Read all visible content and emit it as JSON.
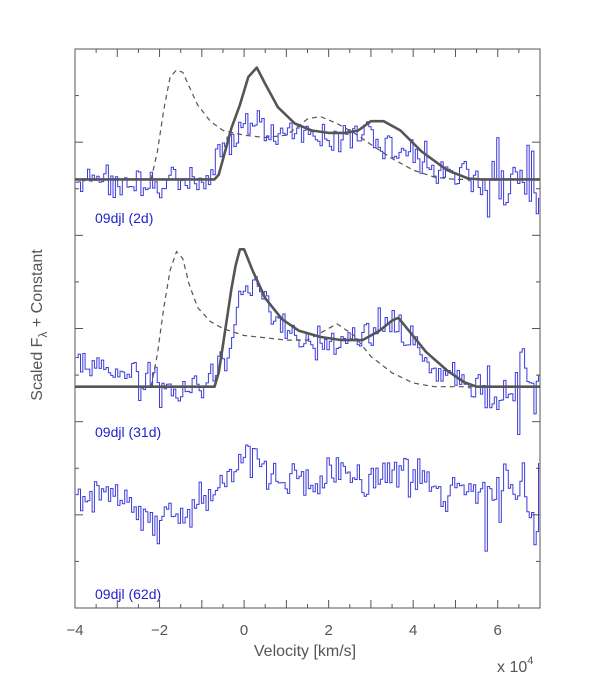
{
  "chart_data": {
    "type": "line",
    "xlabel": "Velocity [km/s]",
    "ylabel": "Scaled F",
    "ylabel_sub": "λ",
    "ylabel_suffix": " + Constant",
    "x_multiplier": "x 10",
    "x_multiplier_exp": "4",
    "xlim": [
      -4,
      7
    ],
    "ylim": [
      0,
      12
    ],
    "xticks": [
      "−4",
      "−2",
      "0",
      "2",
      "4",
      "6"
    ],
    "xtick_values": [
      -4,
      -2,
      0,
      2,
      4,
      6
    ],
    "colors": {
      "observed": "#3b3bdc",
      "model": "#555555",
      "label": "#2222cc",
      "axis": "#555555"
    },
    "panels": [
      {
        "label": "09djl (2d)",
        "offset": 9.2,
        "observed_noise": 0.75,
        "observed_shape": [
          [
            -4.0,
            0.0
          ],
          [
            -2.2,
            -0.1
          ],
          [
            -1.0,
            0.0
          ],
          [
            -0.5,
            0.5
          ],
          [
            -0.2,
            0.9
          ],
          [
            0.0,
            1.3
          ],
          [
            0.5,
            1.0
          ],
          [
            1.0,
            1.1
          ],
          [
            1.5,
            1.0
          ],
          [
            2.0,
            0.9
          ],
          [
            2.5,
            0.9
          ],
          [
            3.0,
            0.9
          ],
          [
            3.5,
            0.8
          ],
          [
            4.0,
            0.5
          ],
          [
            4.5,
            0.2
          ],
          [
            5.0,
            0.1
          ],
          [
            5.5,
            0.0
          ],
          [
            6.0,
            0.0
          ],
          [
            7.0,
            0.0
          ]
        ],
        "model_solid": [
          [
            -4.0,
            0.0
          ],
          [
            -0.7,
            0.0
          ],
          [
            -0.6,
            0.1
          ],
          [
            -0.45,
            0.6
          ],
          [
            -0.3,
            1.1
          ],
          [
            -0.1,
            1.6
          ],
          [
            0.1,
            2.2
          ],
          [
            0.3,
            2.4
          ],
          [
            0.5,
            2.05
          ],
          [
            0.8,
            1.55
          ],
          [
            1.2,
            1.2
          ],
          [
            1.6,
            1.05
          ],
          [
            2.0,
            1.0
          ],
          [
            2.4,
            1.0
          ],
          [
            2.7,
            1.05
          ],
          [
            3.0,
            1.25
          ],
          [
            3.3,
            1.25
          ],
          [
            3.7,
            1.05
          ],
          [
            4.2,
            0.6
          ],
          [
            4.8,
            0.2
          ],
          [
            5.3,
            0.02
          ],
          [
            5.6,
            0.0
          ],
          [
            7.0,
            0.0
          ]
        ],
        "model_dashed": [
          [
            -2.2,
            0.0
          ],
          [
            -2.05,
            0.6
          ],
          [
            -1.9,
            1.5
          ],
          [
            -1.75,
            2.2
          ],
          [
            -1.6,
            2.35
          ],
          [
            -1.45,
            2.3
          ],
          [
            -1.3,
            2.0
          ],
          [
            -1.1,
            1.6
          ],
          [
            -0.8,
            1.25
          ],
          [
            -0.5,
            1.05
          ],
          [
            0.0,
            0.95
          ],
          [
            0.5,
            0.9
          ],
          [
            1.0,
            0.95
          ],
          [
            1.5,
            1.3
          ],
          [
            1.8,
            1.35
          ],
          [
            2.2,
            1.2
          ],
          [
            2.6,
            1.0
          ],
          [
            3.0,
            0.75
          ],
          [
            3.5,
            0.45
          ],
          [
            4.0,
            0.2
          ],
          [
            4.5,
            0.05
          ],
          [
            5.0,
            0.0
          ],
          [
            5.5,
            0.0
          ]
        ]
      },
      {
        "label": "09djl (31d)",
        "offset": 4.75,
        "observed_noise": 0.7,
        "observed_shape": [
          [
            -4.0,
            0.6
          ],
          [
            -3.0,
            0.3
          ],
          [
            -2.5,
            0.2
          ],
          [
            -2.0,
            0.0
          ],
          [
            -1.5,
            -0.1
          ],
          [
            -0.8,
            0.1
          ],
          [
            -0.3,
            1.0
          ],
          [
            -0.1,
            2.0
          ],
          [
            0.3,
            2.1
          ],
          [
            0.8,
            1.4
          ],
          [
            1.2,
            1.1
          ],
          [
            1.6,
            0.9
          ],
          [
            2.0,
            0.8
          ],
          [
            2.5,
            1.2
          ],
          [
            3.0,
            1.3
          ],
          [
            3.5,
            1.4
          ],
          [
            4.0,
            0.9
          ],
          [
            4.5,
            0.4
          ],
          [
            5.0,
            0.2
          ],
          [
            6.0,
            0.0
          ],
          [
            7.0,
            0.0
          ]
        ],
        "model_solid": [
          [
            -4.0,
            0.0
          ],
          [
            -0.7,
            0.0
          ],
          [
            -0.6,
            0.3
          ],
          [
            -0.5,
            0.9
          ],
          [
            -0.4,
            1.5
          ],
          [
            -0.3,
            2.1
          ],
          [
            -0.2,
            2.6
          ],
          [
            -0.1,
            2.95
          ],
          [
            0.0,
            2.95
          ],
          [
            0.2,
            2.5
          ],
          [
            0.5,
            1.9
          ],
          [
            0.9,
            1.45
          ],
          [
            1.3,
            1.2
          ],
          [
            1.8,
            1.07
          ],
          [
            2.3,
            1.0
          ],
          [
            2.8,
            1.0
          ],
          [
            3.2,
            1.2
          ],
          [
            3.5,
            1.42
          ],
          [
            3.65,
            1.48
          ],
          [
            3.9,
            1.2
          ],
          [
            4.3,
            0.75
          ],
          [
            4.8,
            0.35
          ],
          [
            5.2,
            0.1
          ],
          [
            5.5,
            0.0
          ],
          [
            7.0,
            0.0
          ]
        ],
        "model_dashed": [
          [
            -2.2,
            0.0
          ],
          [
            -2.05,
            0.7
          ],
          [
            -1.9,
            1.7
          ],
          [
            -1.75,
            2.5
          ],
          [
            -1.6,
            2.9
          ],
          [
            -1.45,
            2.75
          ],
          [
            -1.3,
            2.2
          ],
          [
            -1.1,
            1.7
          ],
          [
            -0.8,
            1.4
          ],
          [
            -0.5,
            1.25
          ],
          [
            0.0,
            1.1
          ],
          [
            0.5,
            1.05
          ],
          [
            1.0,
            1.0
          ],
          [
            1.5,
            1.0
          ],
          [
            1.9,
            1.2
          ],
          [
            2.2,
            1.35
          ],
          [
            2.6,
            1.1
          ],
          [
            3.0,
            0.65
          ],
          [
            3.5,
            0.3
          ],
          [
            4.0,
            0.08
          ],
          [
            4.5,
            0.0
          ],
          [
            5.5,
            0.0
          ]
        ]
      },
      {
        "label": "09djl (62d)",
        "offset": 1.9,
        "observed_noise": 0.85,
        "observed_shape": [
          [
            -4.0,
            0.6
          ],
          [
            -3.0,
            0.5
          ],
          [
            -2.2,
            0.0
          ],
          [
            -1.5,
            0.1
          ],
          [
            -0.7,
            0.7
          ],
          [
            -0.2,
            1.1
          ],
          [
            0.0,
            1.6
          ],
          [
            0.5,
            1.0
          ],
          [
            1.0,
            0.8
          ],
          [
            1.5,
            0.7
          ],
          [
            2.0,
            0.8
          ],
          [
            2.5,
            0.9
          ],
          [
            3.0,
            0.9
          ],
          [
            3.5,
            1.1
          ],
          [
            4.0,
            0.9
          ],
          [
            4.5,
            0.7
          ],
          [
            5.0,
            0.6
          ],
          [
            5.5,
            0.5
          ],
          [
            6.0,
            0.5
          ],
          [
            7.0,
            0.4
          ]
        ],
        "model_solid": [],
        "model_dashed": []
      }
    ]
  }
}
